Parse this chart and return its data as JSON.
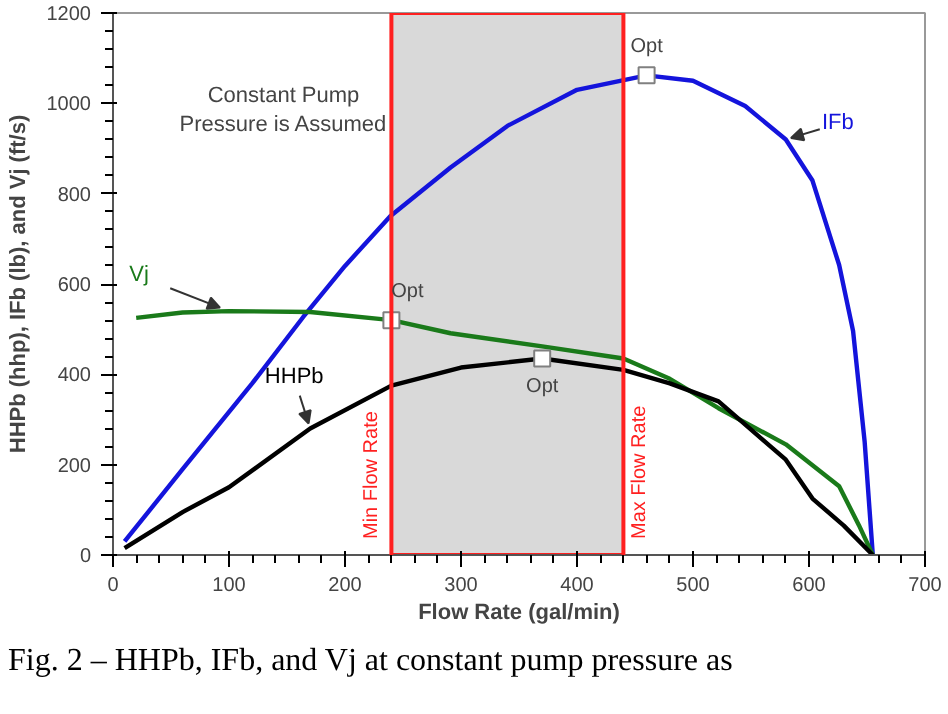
{
  "chart_data": {
    "type": "line",
    "xlabel": "Flow Rate (gal/min)",
    "ylabel": "HHPb (hhp), IFb (lb), and Vj (ft/s)",
    "xlim": [
      0,
      700
    ],
    "ylim": [
      0,
      1200
    ],
    "xticks": [
      0,
      100,
      200,
      300,
      400,
      500,
      600,
      700
    ],
    "yticks": [
      0,
      200,
      400,
      600,
      800,
      1000,
      1200
    ],
    "grid": false,
    "line_style": "solid",
    "marker": "none",
    "series": [
      {
        "name": "IFb",
        "color": "#1414dc",
        "x": [
          10,
          60,
          120,
          164,
          200,
          239,
          291,
          340,
          400,
          460,
          500,
          545,
          580,
          603,
          626,
          638,
          648,
          655
        ],
        "values": [
          30,
          190,
          380,
          527,
          640,
          750,
          858,
          950,
          1030,
          1062,
          1050,
          994,
          920,
          829,
          642,
          496,
          250,
          0
        ]
      },
      {
        "name": "Vj",
        "color": "#1a7a1a",
        "x": [
          20,
          60,
          100,
          170,
          240,
          291,
          370,
          440,
          480,
          522,
          580,
          626,
          643,
          655
        ],
        "values": [
          525,
          537,
          540,
          538,
          520,
          491,
          462,
          435,
          390,
          325,
          245,
          152,
          66,
          0
        ]
      },
      {
        "name": "HHPb",
        "color": "#000000",
        "x": [
          10,
          60,
          100,
          170,
          240,
          300,
          370,
          440,
          480,
          522,
          580,
          603,
          630,
          655
        ],
        "values": [
          15,
          95,
          150,
          280,
          375,
          415,
          435,
          410,
          380,
          340,
          211,
          125,
          65,
          0
        ]
      },
      {
        "type": "scatter",
        "marker": "square",
        "color": "#808080",
        "x": [
          240,
          370,
          460
        ],
        "values": [
          520,
          435,
          1062
        ]
      }
    ],
    "bands": [
      {
        "axis": "x",
        "from": 240,
        "to": 440,
        "color": "#d9d9d9"
      }
    ],
    "ref_lines": [
      {
        "axis": "x",
        "value": 240,
        "label": "Min Flow Rate",
        "color": "#ff2020"
      },
      {
        "axis": "x",
        "value": 440,
        "label": "Max Flow Rate",
        "color": "#ff2020"
      }
    ],
    "annotations": [
      {
        "text": "Opt",
        "x": 240,
        "y": 520
      },
      {
        "text": "Opt",
        "x": 370,
        "y": 435
      },
      {
        "text": "Opt",
        "x": 460,
        "y": 1062
      },
      "Constant Pump\nPressure is Assumed",
      "Fig. 2 – HHPb, IFb, and Vj at constant pump pressure as"
    ]
  }
}
